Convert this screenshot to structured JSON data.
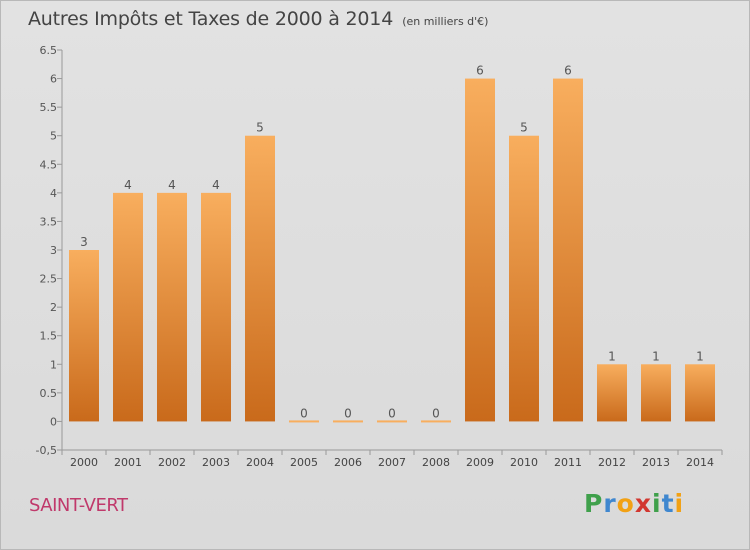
{
  "header": {
    "title": "Autres Impôts et Taxes de 2000 à 2014",
    "unit": "(en milliers d'€)"
  },
  "footer": {
    "place": "SAINT-VERT",
    "brand": [
      "P",
      "r",
      "o",
      "x",
      "i",
      "t",
      "i"
    ]
  },
  "colors": {
    "bar_light": "#f8ae5e",
    "bar_dark": "#c96a1b",
    "place": "#c0396b",
    "brand": [
      "#3fa04b",
      "#3f87cf",
      "#f2a114",
      "#d23730",
      "#3fa04b",
      "#3f87cf",
      "#f2a114"
    ]
  },
  "chart_data": {
    "type": "bar",
    "categories": [
      "2000",
      "2001",
      "2002",
      "2003",
      "2004",
      "2005",
      "2006",
      "2007",
      "2008",
      "2009",
      "2010",
      "2011",
      "2012",
      "2013",
      "2014"
    ],
    "values": [
      3,
      4,
      4,
      4,
      5,
      0,
      0,
      0,
      0,
      6,
      5,
      6,
      1,
      1,
      1
    ],
    "data_labels": [
      "3",
      "4",
      "4",
      "4",
      "5",
      "0",
      "0",
      "0",
      "0",
      "6",
      "5",
      "6",
      "1",
      "1",
      "1"
    ],
    "title": "Autres Impôts et Taxes de 2000 à 2014",
    "ylim": [
      -0.5,
      6.5
    ],
    "yticks": [
      -0.5,
      0,
      0.5,
      1,
      1.5,
      2,
      2.5,
      3,
      3.5,
      4,
      4.5,
      5,
      5.5,
      6,
      6.5
    ],
    "ytick_labels": [
      "-0,5",
      "0",
      "0.5",
      "1",
      "1.5",
      "2",
      "2.5",
      "3",
      "3.5",
      "4",
      "4.5",
      "5",
      "5.5",
      "6",
      "6.5"
    ],
    "grid": false
  }
}
